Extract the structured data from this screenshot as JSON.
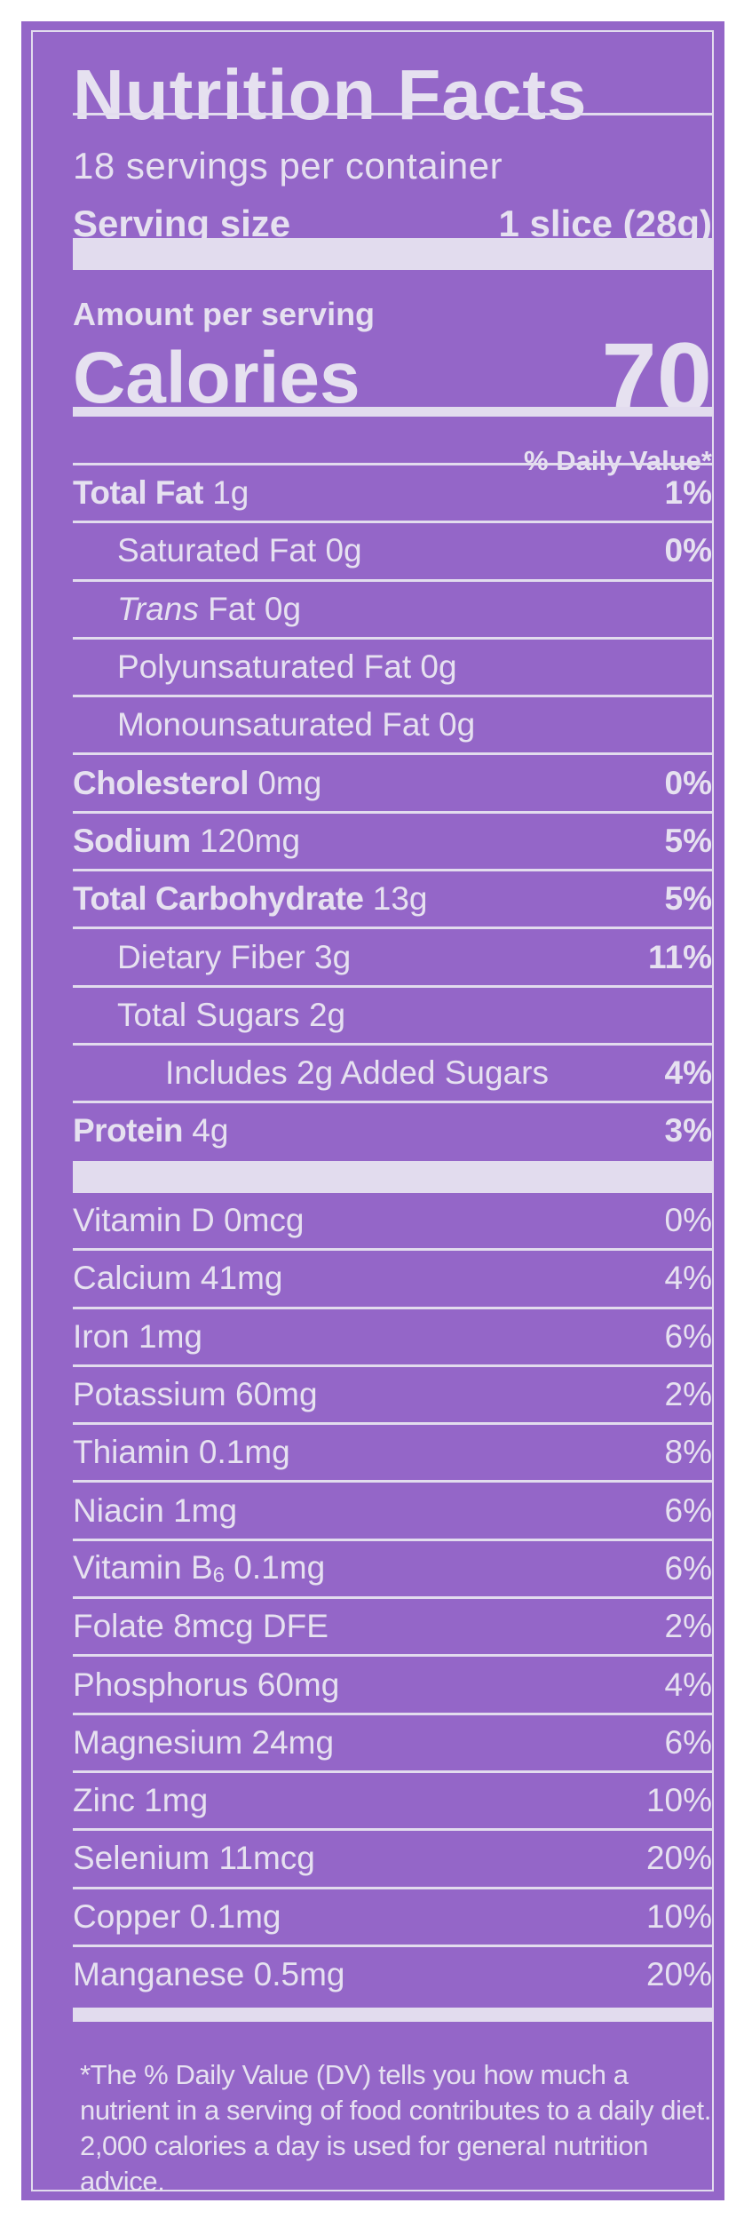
{
  "title": "Nutrition Facts",
  "servings_per_container": "18 servings per container",
  "serving_size_label": "Serving size",
  "serving_size_value": "1 slice (28g)",
  "amount_per_serving": "Amount per serving",
  "calories_label": "Calories",
  "calories_value": "70",
  "daily_value_header": "% Daily Value*",
  "colors": {
    "background": "#9466c8",
    "text": "#e6e1f0"
  },
  "nutrients": [
    {
      "bold": "Total Fat",
      "rest": " 1g",
      "dv": "1%",
      "indent": 0
    },
    {
      "bold": "",
      "rest": "Saturated Fat 0g",
      "dv": "0%",
      "indent": 1
    },
    {
      "italic": "Trans",
      "rest": " Fat 0g",
      "dv": "",
      "indent": 1
    },
    {
      "bold": "",
      "rest": "Polyunsaturated Fat 0g",
      "dv": "",
      "indent": 1
    },
    {
      "bold": "",
      "rest": "Monounsaturated Fat 0g",
      "dv": "",
      "indent": 1
    },
    {
      "bold": "Cholesterol",
      "rest": " 0mg",
      "dv": "0%",
      "indent": 0
    },
    {
      "bold": "Sodium",
      "rest": " 120mg",
      "dv": "5%",
      "indent": 0
    },
    {
      "bold": "Total Carbohydrate",
      "rest": " 13g",
      "dv": "5%",
      "indent": 0
    },
    {
      "bold": "",
      "rest": "Dietary Fiber 3g",
      "dv": "11%",
      "indent": 1
    },
    {
      "bold": "",
      "rest": "Total Sugars 2g",
      "dv": "",
      "indent": 1
    },
    {
      "bold": "",
      "rest": "Includes 2g Added Sugars",
      "dv": "4%",
      "indent": 2
    },
    {
      "bold": "Protein",
      "rest": " 4g",
      "dv": "3%",
      "indent": 0
    }
  ],
  "vitamins": [
    {
      "rest": "Vitamin D 0mcg",
      "dv": "0%"
    },
    {
      "rest": "Calcium 41mg",
      "dv": "4%"
    },
    {
      "rest": "Iron 1mg",
      "dv": "6%"
    },
    {
      "rest": "Potassium 60mg",
      "dv": "2%"
    },
    {
      "rest": "Thiamin 0.1mg",
      "dv": "8%"
    },
    {
      "rest": "Niacin 1mg",
      "dv": "6%"
    },
    {
      "rest": "Vitamin B",
      "sub": "6",
      "after": " 0.1mg",
      "dv": "6%"
    },
    {
      "rest": "Folate 8mcg DFE",
      "dv": "2%"
    },
    {
      "rest": "Phosphorus 60mg",
      "dv": "4%"
    },
    {
      "rest": "Magnesium 24mg",
      "dv": "6%"
    },
    {
      "rest": "Zinc 1mg",
      "dv": "10%"
    },
    {
      "rest": "Selenium 11mcg",
      "dv": "20%"
    },
    {
      "rest": "Copper 0.1mg",
      "dv": "10%"
    },
    {
      "rest": "Manganese 0.5mg",
      "dv": "20%"
    }
  ],
  "footnote": "*The % Daily Value (DV) tells you how much a nutrient in a serving of food contributes to a daily diet. 2,000 calories a day is used for general nutrition advice."
}
